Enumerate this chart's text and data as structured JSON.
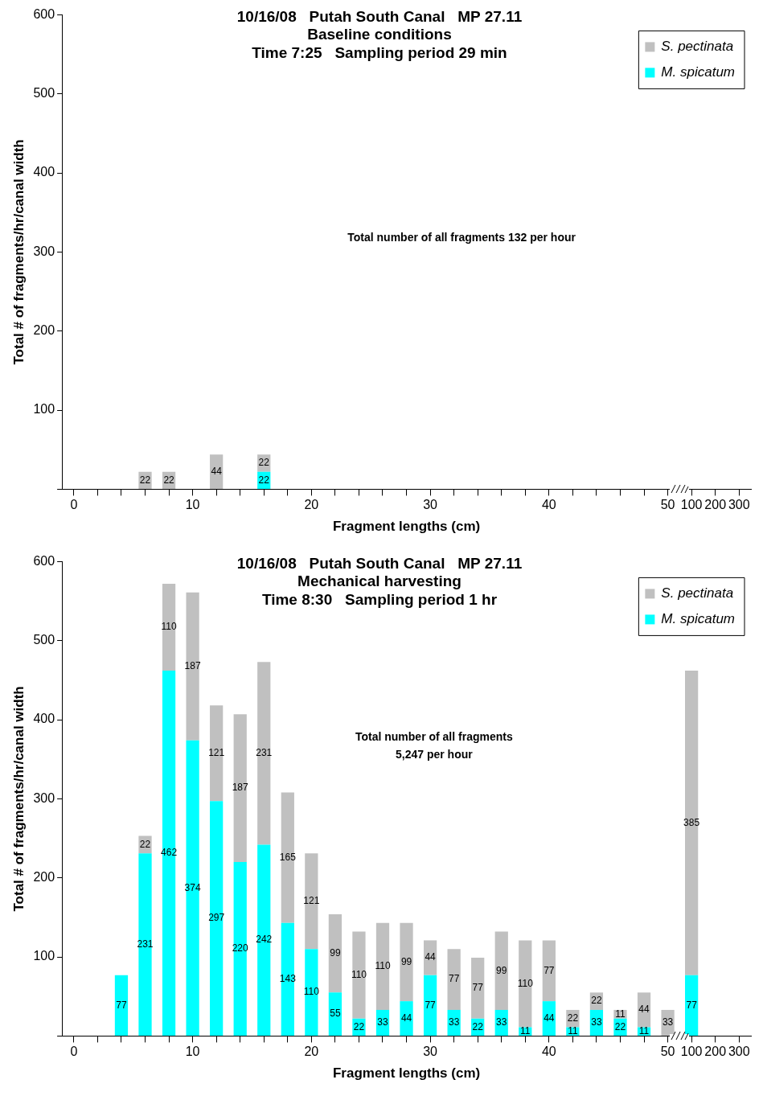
{
  "chart_data": [
    {
      "type": "bar",
      "title": "10/16/08   Putah South Canal   MP 27.11\nBaseline conditions\nTime 7:25   Sampling period 29 min",
      "xlabel": "Fragment lengths (cm)",
      "ylabel": "Total # of fragments/hr/canal width",
      "categories": [
        "0",
        null,
        null,
        null,
        null,
        "10",
        null,
        null,
        null,
        null,
        "20",
        null,
        null,
        null,
        null,
        "30",
        null,
        null,
        null,
        null,
        "40",
        null,
        null,
        null,
        null,
        "50",
        "100",
        "200",
        "300"
      ],
      "series": [
        {
          "name": "M. spicatum",
          "color": "#00ffff",
          "values": [
            null,
            null,
            null,
            null,
            null,
            null,
            null,
            null,
            22,
            null,
            null,
            null,
            null,
            null,
            null,
            null,
            null,
            null,
            null,
            null,
            null,
            null,
            null,
            null,
            null,
            null,
            null,
            null,
            null
          ]
        },
        {
          "name": "S. pectinata",
          "color": "#c0c0c0",
          "values": [
            null,
            null,
            null,
            22,
            22,
            null,
            44,
            null,
            22,
            null,
            null,
            null,
            null,
            null,
            null,
            null,
            null,
            null,
            null,
            null,
            null,
            null,
            null,
            null,
            null,
            null,
            null,
            null,
            null
          ]
        }
      ],
      "stacked": true,
      "ylim": [
        0,
        600
      ],
      "yticks": [
        {
          "value": 0,
          "label": null
        },
        100,
        200,
        300,
        400,
        500,
        600
      ],
      "grid": false,
      "legend": "top right",
      "data_labels": true,
      "annotations": [
        "Total number of all fragments 132 per hour"
      ]
    },
    {
      "type": "bar",
      "title": "10/16/08   Putah South Canal   MP 27.11\nMechanical harvesting\nTime 8:30   Sampling period 1 hr",
      "xlabel": "Fragment lengths (cm)",
      "ylabel": "Total # of fragments/hr/canal width",
      "categories": [
        "0",
        null,
        null,
        null,
        null,
        "10",
        null,
        null,
        null,
        null,
        "20",
        null,
        null,
        null,
        null,
        "30",
        null,
        null,
        null,
        null,
        "40",
        null,
        null,
        null,
        null,
        "50",
        "100",
        "200",
        "300"
      ],
      "series": [
        {
          "name": "M. spicatum",
          "color": "#00ffff",
          "values": [
            null,
            null,
            77,
            231,
            462,
            374,
            297,
            220,
            242,
            143,
            110,
            55,
            22,
            33,
            44,
            77,
            33,
            22,
            33,
            11,
            44,
            11,
            33,
            22,
            11,
            null,
            77,
            null,
            null
          ]
        },
        {
          "name": "S. pectinata",
          "color": "#c0c0c0",
          "values": [
            null,
            null,
            null,
            22,
            110,
            187,
            121,
            187,
            231,
            165,
            121,
            99,
            110,
            110,
            99,
            44,
            77,
            77,
            99,
            110,
            77,
            22,
            22,
            11,
            44,
            33,
            385,
            null,
            null
          ]
        }
      ],
      "stacked": true,
      "ylim": [
        0,
        600
      ],
      "yticks": [
        {
          "value": 0,
          "label": null
        },
        100,
        200,
        300,
        400,
        500,
        600
      ],
      "grid": false,
      "legend": "top right",
      "data_labels": true,
      "annotations": [
        "Total number of all fragments\n5,247 per hour"
      ]
    }
  ]
}
